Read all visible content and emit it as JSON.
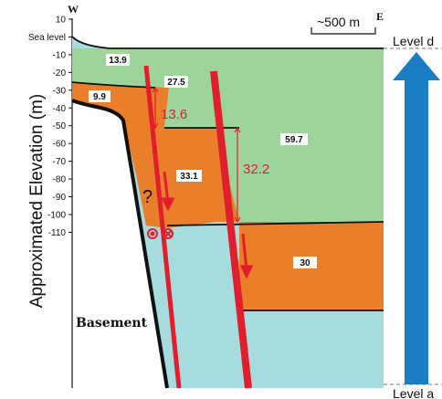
{
  "axis": {
    "y_label": "Approximated Elevation (m)",
    "ticks": [
      "10",
      "Sea level",
      "-10",
      "-20",
      "-30",
      "-40",
      "-50",
      "-60",
      "-70",
      "-80",
      "-90",
      "-100",
      "-110"
    ]
  },
  "compass": {
    "west": "W",
    "east": "E"
  },
  "scale_bar": {
    "label": "~500 m"
  },
  "levels": {
    "top": "Level d",
    "bottom": "Level a"
  },
  "units": [
    {
      "value": "13.9",
      "color": "#9dd49a"
    },
    {
      "value": "27.5",
      "color": "#9dd49a"
    },
    {
      "value": "9.9",
      "color": "#ea7f2b"
    },
    {
      "value": "59.7",
      "color": "#9dd49a"
    },
    {
      "value": "33.1",
      "color": "#ea7f2b"
    },
    {
      "value": "30",
      "color": "#ea7f2b"
    }
  ],
  "offsets": {
    "left": "13.6",
    "right": "32.2"
  },
  "basement_label": "Basement",
  "question_mark": "?",
  "colors": {
    "green": "#9dd49a",
    "orange": "#ea7f2b",
    "cyan": "#a6dcde",
    "fault": "#e01e2c",
    "arrow": "#1a7dc4"
  }
}
